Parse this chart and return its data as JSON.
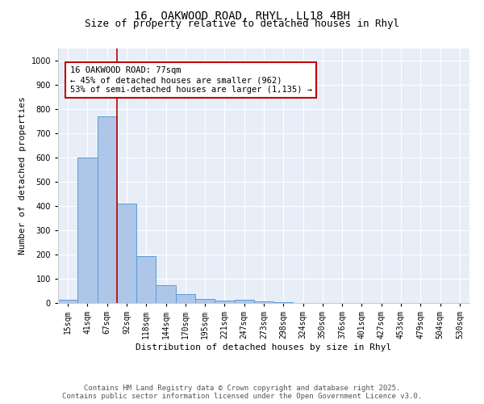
{
  "title_line1": "16, OAKWOOD ROAD, RHYL, LL18 4BH",
  "title_line2": "Size of property relative to detached houses in Rhyl",
  "xlabel": "Distribution of detached houses by size in Rhyl",
  "ylabel": "Number of detached properties",
  "categories": [
    "15sqm",
    "41sqm",
    "67sqm",
    "92sqm",
    "118sqm",
    "144sqm",
    "170sqm",
    "195sqm",
    "221sqm",
    "247sqm",
    "273sqm",
    "298sqm",
    "324sqm",
    "350sqm",
    "376sqm",
    "401sqm",
    "427sqm",
    "453sqm",
    "479sqm",
    "504sqm",
    "530sqm"
  ],
  "values": [
    15,
    600,
    770,
    410,
    193,
    75,
    38,
    18,
    10,
    13,
    8,
    5,
    0,
    0,
    0,
    0,
    0,
    0,
    0,
    0,
    0
  ],
  "bar_color": "#aec6e8",
  "bar_edge_color": "#5b9bd5",
  "vline_x": 2.5,
  "vline_color": "#c00000",
  "annotation_box_text": "16 OAKWOOD ROAD: 77sqm\n← 45% of detached houses are smaller (962)\n53% of semi-detached houses are larger (1,135) →",
  "annotation_box_color": "#c00000",
  "ylim": [
    0,
    1050
  ],
  "yticks": [
    0,
    100,
    200,
    300,
    400,
    500,
    600,
    700,
    800,
    900,
    1000
  ],
  "background_color": "#e8eef8",
  "footer_line1": "Contains HM Land Registry data © Crown copyright and database right 2025.",
  "footer_line2": "Contains public sector information licensed under the Open Government Licence v3.0.",
  "title_fontsize": 10,
  "subtitle_fontsize": 9,
  "axis_label_fontsize": 8,
  "tick_fontsize": 7,
  "annotation_fontsize": 7.5,
  "footer_fontsize": 6.5
}
